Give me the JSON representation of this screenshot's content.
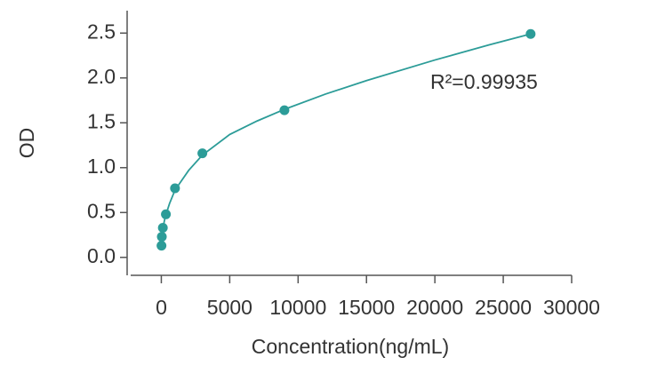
{
  "chart_data": {
    "type": "scatter",
    "x_label": "Concentration(ng/mL)",
    "y_label": "OD",
    "annotation": "R²=0.99935",
    "color": "#2c9c98",
    "x": [
      12,
      37,
      111,
      333,
      1000,
      3000,
      9000,
      27000
    ],
    "values": [
      0.13,
      0.23,
      0.33,
      0.48,
      0.77,
      1.16,
      1.64,
      2.49
    ],
    "curve": {
      "x": [
        0,
        100,
        300,
        600,
        1000,
        2000,
        3000,
        5000,
        7000,
        9000,
        12000,
        15000,
        20000,
        24000,
        27000
      ],
      "y": [
        0.13,
        0.32,
        0.46,
        0.6,
        0.75,
        0.97,
        1.14,
        1.37,
        1.52,
        1.65,
        1.82,
        1.97,
        2.2,
        2.37,
        2.49
      ]
    },
    "xlim": [
      -2500,
      30000
    ],
    "ylim": [
      -0.2,
      2.75
    ],
    "xticks": [
      0,
      5000,
      10000,
      15000,
      20000,
      25000,
      30000
    ],
    "yticks": [
      {
        "value": 0,
        "label": "0.0"
      },
      0.5,
      {
        "value": 1,
        "label": "1.0"
      },
      1.5,
      {
        "value": 2,
        "label": "2.0"
      },
      2.5
    ]
  }
}
